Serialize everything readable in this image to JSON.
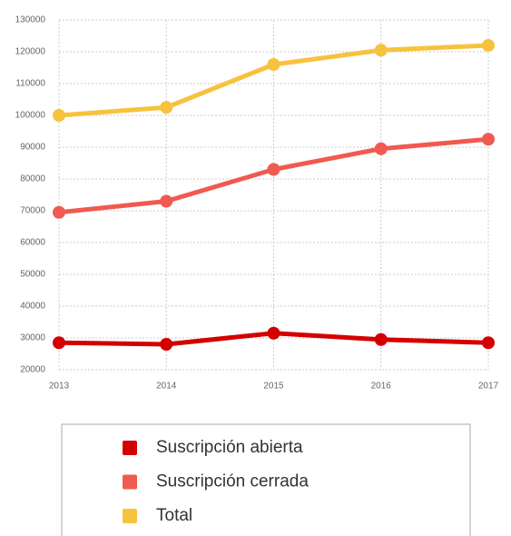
{
  "chart_data": {
    "type": "line",
    "categories": [
      "2013",
      "2014",
      "2015",
      "2016",
      "2017"
    ],
    "series": [
      {
        "name": "Suscripción abierta",
        "color": "#d40000",
        "values": [
          28500,
          28000,
          31500,
          29500,
          28500
        ]
      },
      {
        "name": "Suscripción cerrada",
        "color": "#f05a50",
        "values": [
          69500,
          73000,
          83000,
          89500,
          92500
        ]
      },
      {
        "name": "Total",
        "color": "#f7c23c",
        "values": [
          100000,
          102500,
          116000,
          120500,
          122000
        ]
      }
    ],
    "ylim": [
      20000,
      130000
    ],
    "yticks": [
      20000,
      30000,
      40000,
      50000,
      60000,
      70000,
      80000,
      90000,
      100000,
      110000,
      120000,
      130000
    ],
    "grid": true,
    "legend": "bottom"
  }
}
